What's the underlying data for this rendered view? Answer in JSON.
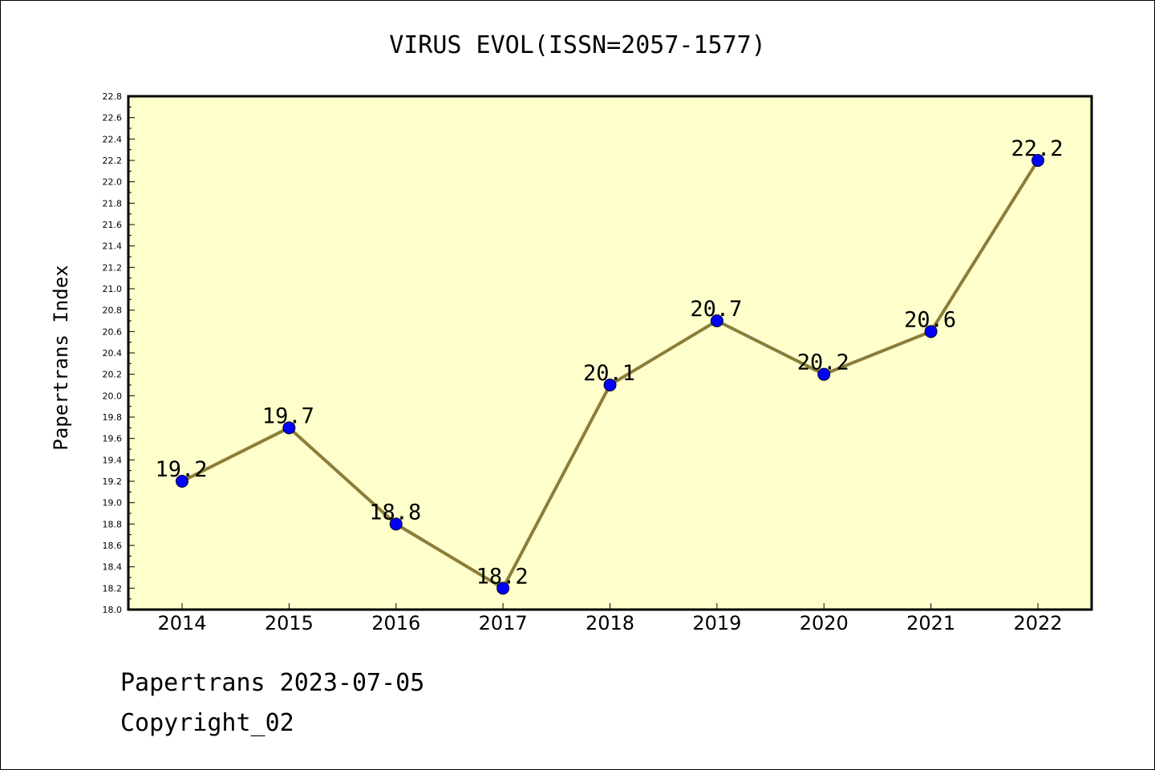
{
  "chart_data": {
    "type": "line",
    "title": "VIRUS EVOL(ISSN=2057-1577)",
    "xlabel": "",
    "ylabel": "Papertrans Index",
    "categories": [
      "2014",
      "2015",
      "2016",
      "2017",
      "2018",
      "2019",
      "2020",
      "2021",
      "2022"
    ],
    "series": [
      {
        "values": [
          19.2,
          19.7,
          18.8,
          18.2,
          20.1,
          20.7,
          20.2,
          20.6,
          22.2
        ],
        "labels": [
          "19.2",
          "19.7",
          "18.8",
          "18.2",
          "20.1",
          "20.7",
          "20.2",
          "20.6",
          "22.2"
        ]
      }
    ],
    "ylim": [
      18.0,
      22.8
    ],
    "ytick_labels": [
      "18.0",
      "18.2",
      "18.4",
      "18.6",
      "18.8",
      "19.0",
      "19.2",
      "19.4",
      "19.6",
      "19.8",
      "20.0",
      "20.2",
      "20.4",
      "20.6",
      "20.8",
      "21.0",
      "21.2",
      "21.4",
      "21.6",
      "21.8",
      "22.0",
      "22.2",
      "22.4",
      "22.6",
      "22.8"
    ],
    "grid": false,
    "colors": {
      "plot_background": "#ffffcc",
      "line": "#8b7d3a",
      "marker": "#0000ff"
    }
  },
  "footer": {
    "line1": "Papertrans 2023-07-05",
    "line2": "Copyright_02"
  }
}
